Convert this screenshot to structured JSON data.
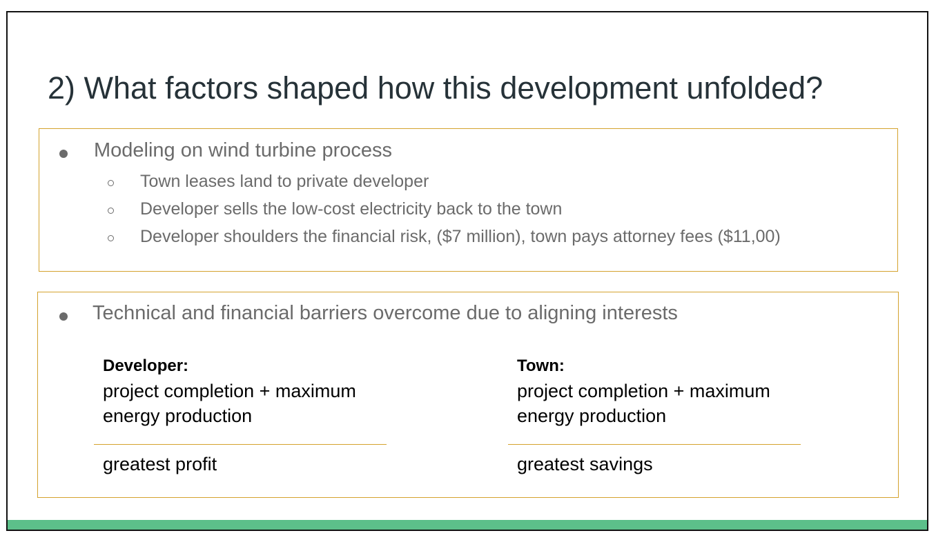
{
  "title": "2) What factors shaped how this development unfolded?",
  "section1": {
    "bullet": "Modeling on wind turbine process",
    "sub_items": [
      "Town leases land to private developer",
      "Developer sells the low-cost electricity back to the town",
      "Developer shoulders the financial risk, ($7 million), town pays attorney fees ($11,00)"
    ]
  },
  "section2": {
    "bullet": "Technical and financial barriers overcome due to aligning interests",
    "developer": {
      "heading": "Developer:",
      "line1": "project completion + maximum",
      "line2": "energy production",
      "result": "greatest profit"
    },
    "town": {
      "heading": "Town:",
      "line1": "project completion + maximum",
      "line2": "energy production",
      "result": "greatest savings"
    }
  },
  "colors": {
    "title": "#263238",
    "body_text": "#6b6b6b",
    "box_border": "#d4a22c",
    "footer_bar": "#5cc08a"
  }
}
